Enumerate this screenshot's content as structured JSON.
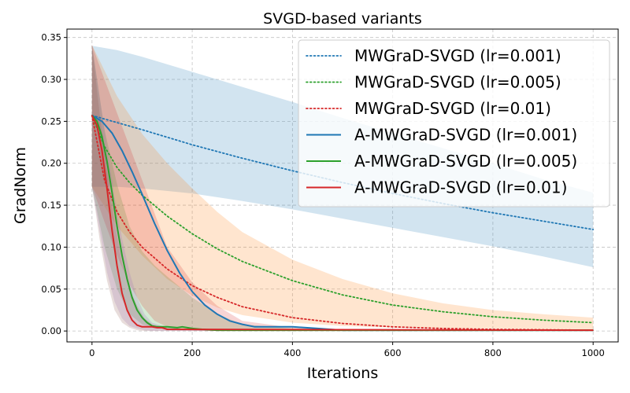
{
  "chart_data": {
    "type": "line",
    "title": "SVGD-based variants",
    "xlabel": "Iterations",
    "ylabel": "GradNorm",
    "xlim": [
      -50,
      1050
    ],
    "ylim": [
      -0.013,
      0.36
    ],
    "xticks": [
      0,
      200,
      400,
      600,
      800,
      1000
    ],
    "xtick_labels": [
      "0",
      "200",
      "400",
      "600",
      "800",
      "1000"
    ],
    "yticks": [
      0.0,
      0.05,
      0.1,
      0.15,
      0.2,
      0.25,
      0.3,
      0.35
    ],
    "ytick_labels": [
      "0.00",
      "0.05",
      "0.10",
      "0.15",
      "0.20",
      "0.25",
      "0.30",
      "0.35"
    ],
    "grid": true,
    "legend_position": "top-right",
    "bands": [
      {
        "name": "band-blue",
        "color": "#1f77b4",
        "opacity": 0.2,
        "x": [
          0,
          50,
          100,
          200,
          300,
          400,
          500,
          600,
          700,
          800,
          900,
          1000
        ],
        "upper": [
          0.34,
          0.335,
          0.327,
          0.309,
          0.291,
          0.273,
          0.254,
          0.236,
          0.218,
          0.2,
          0.181,
          0.165
        ],
        "lower": [
          0.172,
          0.172,
          0.17,
          0.164,
          0.155,
          0.145,
          0.134,
          0.123,
          0.112,
          0.101,
          0.089,
          0.076
        ]
      },
      {
        "name": "band-orange",
        "color": "#ff7f0e",
        "opacity": 0.2,
        "x": [
          0,
          50,
          100,
          150,
          200,
          250,
          300,
          400,
          500,
          600,
          700,
          800,
          900,
          1000
        ],
        "upper": [
          0.341,
          0.28,
          0.235,
          0.2,
          0.17,
          0.142,
          0.118,
          0.085,
          0.062,
          0.045,
          0.033,
          0.025,
          0.02,
          0.016
        ],
        "lower": [
          0.172,
          0.125,
          0.09,
          0.062,
          0.042,
          0.028,
          0.019,
          0.01,
          0.006,
          0.004,
          0.003,
          0.003,
          0.002,
          0.002
        ]
      },
      {
        "name": "band-green",
        "color": "#2ca02c",
        "opacity": 0.2,
        "x": [
          0,
          25,
          50,
          75,
          100,
          125,
          150,
          200,
          250,
          300,
          400,
          500,
          1000
        ],
        "upper": [
          0.341,
          0.24,
          0.175,
          0.125,
          0.095,
          0.078,
          0.065,
          0.04,
          0.02,
          0.008,
          0.003,
          0.002,
          0.001
        ],
        "lower": [
          0.172,
          0.1,
          0.05,
          0.02,
          0.008,
          0.004,
          0.002,
          0.001,
          0.0,
          0.0,
          0.0,
          0.0,
          0.0
        ]
      },
      {
        "name": "band-red",
        "color": "#d62728",
        "opacity": 0.2,
        "x": [
          0,
          25,
          50,
          75,
          100,
          125,
          150,
          200,
          250,
          300,
          400,
          500,
          1000
        ],
        "upper": [
          0.341,
          0.3,
          0.26,
          0.22,
          0.18,
          0.14,
          0.1,
          0.058,
          0.03,
          0.012,
          0.004,
          0.002,
          0.001
        ],
        "lower": [
          0.172,
          0.13,
          0.09,
          0.055,
          0.03,
          0.012,
          0.005,
          0.001,
          0.0,
          0.0,
          0.0,
          0.0,
          0.0
        ]
      },
      {
        "name": "band-purple",
        "color": "#9467bd",
        "opacity": 0.2,
        "x": [
          0,
          15,
          30,
          45,
          60,
          75,
          90,
          105,
          120,
          150,
          200,
          1000
        ],
        "upper": [
          0.341,
          0.28,
          0.22,
          0.16,
          0.11,
          0.07,
          0.04,
          0.02,
          0.01,
          0.004,
          0.002,
          0.001
        ],
        "lower": [
          0.172,
          0.12,
          0.07,
          0.035,
          0.015,
          0.006,
          0.003,
          0.001,
          0.0,
          0.0,
          0.0,
          0.0
        ]
      },
      {
        "name": "band-brown",
        "color": "#8c564b",
        "opacity": 0.2,
        "x": [
          0,
          15,
          30,
          45,
          60,
          75,
          90,
          105,
          120,
          150,
          200,
          1000
        ],
        "upper": [
          0.341,
          0.26,
          0.19,
          0.13,
          0.08,
          0.05,
          0.03,
          0.015,
          0.008,
          0.004,
          0.002,
          0.001
        ],
        "lower": [
          0.172,
          0.11,
          0.06,
          0.025,
          0.01,
          0.004,
          0.001,
          0.0,
          0.0,
          0.0,
          0.0,
          0.0
        ]
      }
    ],
    "series": [
      {
        "name": "MWGraD-SVGD (lr=0.001)",
        "color": "#1f77b4",
        "style": "dotted",
        "x": [
          0,
          100,
          200,
          300,
          400,
          500,
          600,
          700,
          800,
          900,
          1000
        ],
        "values": [
          0.257,
          0.24,
          0.222,
          0.206,
          0.191,
          0.177,
          0.164,
          0.152,
          0.141,
          0.131,
          0.121
        ]
      },
      {
        "name": "MWGraD-SVGD (lr=0.005)",
        "color": "#2ca02c",
        "style": "dotted",
        "x": [
          0,
          25,
          50,
          75,
          100,
          150,
          200,
          250,
          300,
          400,
          500,
          600,
          700,
          800,
          900,
          1000
        ],
        "values": [
          0.257,
          0.22,
          0.195,
          0.177,
          0.162,
          0.137,
          0.116,
          0.098,
          0.083,
          0.06,
          0.043,
          0.031,
          0.023,
          0.017,
          0.013,
          0.01
        ]
      },
      {
        "name": "MWGraD-SVGD (lr=0.01)",
        "color": "#d62728",
        "style": "dotted",
        "x": [
          0,
          25,
          50,
          75,
          100,
          150,
          200,
          250,
          300,
          400,
          500,
          600,
          700,
          800,
          900,
          1000
        ],
        "values": [
          0.257,
          0.18,
          0.142,
          0.118,
          0.1,
          0.074,
          0.054,
          0.04,
          0.029,
          0.016,
          0.009,
          0.005,
          0.003,
          0.002,
          0.0015,
          0.001
        ]
      },
      {
        "name": "A-MWGraD-SVGD (lr=0.001)",
        "color": "#1f77b4",
        "style": "solid",
        "x": [
          0,
          20,
          40,
          60,
          80,
          100,
          125,
          150,
          175,
          200,
          225,
          250,
          275,
          300,
          325,
          350,
          400,
          450,
          500,
          600,
          1000
        ],
        "values": [
          0.257,
          0.25,
          0.236,
          0.215,
          0.19,
          0.163,
          0.128,
          0.096,
          0.069,
          0.047,
          0.031,
          0.02,
          0.012,
          0.008,
          0.005,
          0.005,
          0.005,
          0.003,
          0.001,
          0.001,
          0.001
        ]
      },
      {
        "name": "A-MWGraD-SVGD (lr=0.005)",
        "color": "#2ca02c",
        "style": "solid",
        "x": [
          0,
          10,
          20,
          30,
          40,
          50,
          60,
          70,
          80,
          90,
          100,
          110,
          120,
          130,
          150,
          170,
          180,
          200,
          220,
          250,
          1000
        ],
        "values": [
          0.257,
          0.25,
          0.232,
          0.202,
          0.165,
          0.125,
          0.09,
          0.062,
          0.04,
          0.025,
          0.016,
          0.01,
          0.006,
          0.005,
          0.005,
          0.004,
          0.005,
          0.003,
          0.002,
          0.001,
          0.001
        ]
      },
      {
        "name": "A-MWGraD-SVGD (lr=0.01)",
        "color": "#d62728",
        "style": "solid",
        "x": [
          0,
          10,
          20,
          30,
          40,
          50,
          60,
          70,
          80,
          90,
          100,
          110,
          120,
          130,
          140,
          150,
          1000
        ],
        "values": [
          0.257,
          0.245,
          0.215,
          0.17,
          0.12,
          0.078,
          0.045,
          0.025,
          0.013,
          0.007,
          0.005,
          0.005,
          0.005,
          0.004,
          0.004,
          0.002,
          0.001
        ]
      }
    ]
  }
}
